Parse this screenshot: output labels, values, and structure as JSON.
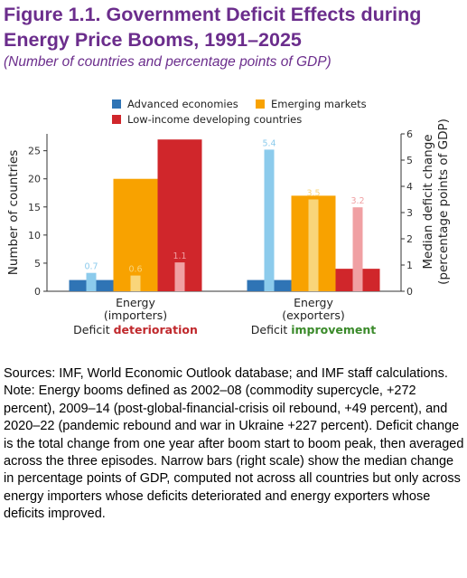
{
  "figure": {
    "title": "Figure 1.1. Government Deficit Effects during Energy Price Booms, 1991–2025",
    "subtitle": "(Number of countries and percentage points of GDP)"
  },
  "chart_data": {
    "type": "bar",
    "title": "",
    "categories": [
      "Energy\n(importers)",
      "Energy\n(exporters)"
    ],
    "category_notes": [
      {
        "prefix": "Deficit ",
        "highlight": "deterioration",
        "highlight_color": "#c0282c"
      },
      {
        "prefix": "Deficit ",
        "highlight": "improvement",
        "highlight_color": "#3a8a2a"
      }
    ],
    "ylabel": "Number of countries",
    "ylim": [
      0,
      28
    ],
    "yticks": [
      0,
      5,
      10,
      15,
      20,
      25
    ],
    "y2label": "Median deficit change\n(percentage points of GDP)",
    "y2lim": [
      0,
      6
    ],
    "y2ticks": [
      0,
      1,
      2,
      3,
      4,
      5,
      6
    ],
    "legend_position": "top",
    "series": [
      {
        "name": "Advanced economies",
        "color": "#2f74b5",
        "light_color": "#8ccbec",
        "values": [
          2,
          2
        ],
        "median_change": [
          0.7,
          5.4
        ]
      },
      {
        "name": "Emerging markets",
        "color": "#f8a200",
        "light_color": "#f9d57a",
        "values": [
          20,
          17
        ],
        "median_change": [
          0.6,
          3.5
        ]
      },
      {
        "name": "Low-income developing countries",
        "color": "#d0262b",
        "light_color": "#f0a0a3",
        "values": [
          27,
          4
        ],
        "median_change": [
          1.1,
          3.2
        ]
      }
    ],
    "median_labels": [
      [
        "0.7",
        "0.6",
        "1.1"
      ],
      [
        "5.4",
        "3.5",
        "3.2"
      ]
    ]
  },
  "notes": {
    "sources": "Sources: IMF, World Economic Outlook database; and IMF staff calculations.",
    "note": "Note: Energy booms defined as 2002–08 (commodity supercycle, +272 percent), 2009–14 (post-global-financial-crisis oil rebound, +49 percent), and 2020–22 (pandemic rebound and war in Ukraine +227 percent). Deficit change is the total change from one year after boom start to boom peak, then averaged across the three episodes. Narrow bars (right scale) show the median change in percentage points of GDP, computed not across all countries but only across energy importers whose deficits deteriorated and energy exporters whose deficits improved."
  }
}
